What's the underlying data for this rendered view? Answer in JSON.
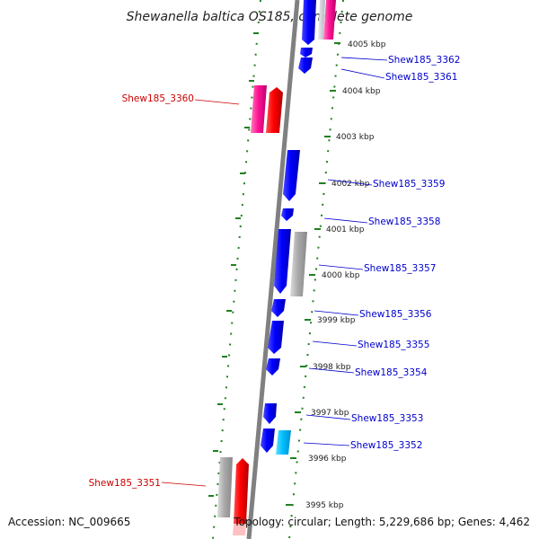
{
  "title": "Shewanella baltica OS185, complete genome",
  "accession": "Accession: NC_009665",
  "topology": "Topology: circular; Length: 5,229,686 bp; Genes: 4,462",
  "colors": {
    "forward_gene": "#ff0000",
    "reverse_gene": "#0000ff",
    "pseudo_gene": "#aaaaaa",
    "rna_gene": "#ff1493",
    "cyan_gene": "#00c0ff",
    "forward_label": "#cc0000",
    "reverse_label": "#0000cc",
    "tick": "#208020",
    "backbone": "#808080"
  },
  "scale_labels": [
    "4005 kbp",
    "4004 kbp",
    "4003 kbp",
    "4002 kbp",
    "4001 kbp",
    "4000 kbp",
    "3999 kbp",
    "3998 kbp",
    "3997 kbp",
    "3996 kbp",
    "3995 kbp"
  ],
  "gene_labels": {
    "g3362": "Shew185_3362",
    "g3361": "Shew185_3361",
    "g3360": "Shew185_3360",
    "g3359": "Shew185_3359",
    "g3358": "Shew185_3358",
    "g3357": "Shew185_3357",
    "g3356": "Shew185_3356",
    "g3355": "Shew185_3355",
    "g3354": "Shew185_3354",
    "g3353": "Shew185_3353",
    "g3352": "Shew185_3352",
    "g3351": "Shew185_3351"
  }
}
